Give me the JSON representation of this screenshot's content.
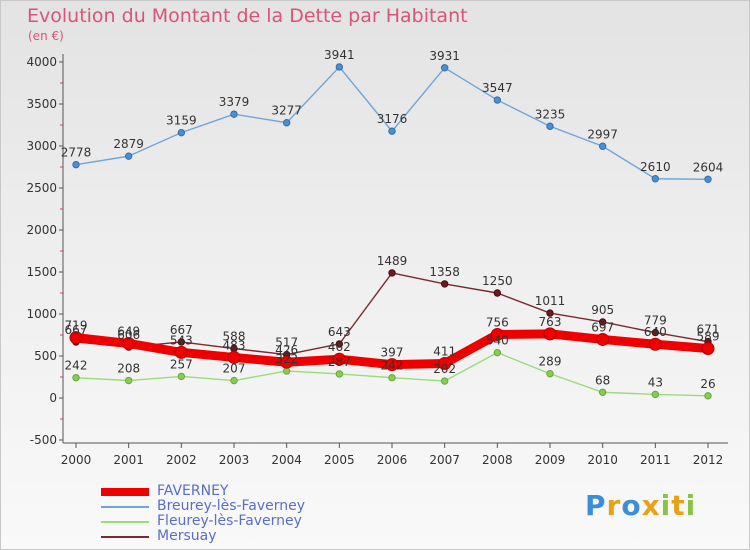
{
  "chart_data": {
    "type": "line",
    "title": "Evolution du Montant de la Dette par Habitant",
    "subtitle": "(en €)",
    "x": [
      "2000",
      "2001",
      "2002",
      "2003",
      "2004",
      "2005",
      "2006",
      "2007",
      "2008",
      "2009",
      "2010",
      "2011",
      "2012"
    ],
    "ylim": [
      -500,
      4000
    ],
    "yticks": [
      "-500",
      "0",
      "500",
      "1000",
      "1500",
      "2000",
      "2500",
      "3000",
      "3500",
      "4000"
    ],
    "grid": false,
    "legend_position": "bottom-left",
    "series": [
      {
        "name": "FAVERNEY",
        "color": "#ee0000",
        "values": [
          719,
          649,
          543,
          483,
          426,
          462,
          397,
          411,
          756,
          763,
          697,
          640,
          589
        ]
      },
      {
        "name": "Breurey-lès-Faverney",
        "color": "#6fa5d8",
        "values": [
          2778,
          2879,
          3159,
          3379,
          3277,
          3941,
          3176,
          3931,
          3547,
          3235,
          2997,
          2610,
          2604
        ]
      },
      {
        "name": "Fleurey-lès-Faverney",
        "color": "#99dd77",
        "values": [
          242,
          208,
          257,
          207,
          322,
          287,
          242,
          202,
          540,
          289,
          68,
          43,
          26
        ]
      },
      {
        "name": "Mersuay",
        "color": "#7a2a30",
        "values": [
          667,
          606,
          667,
          588,
          517,
          643,
          1489,
          1358,
          1250,
          1011,
          905,
          779,
          671
        ]
      }
    ]
  },
  "logo": {
    "text": "Proxiti",
    "letters": [
      {
        "ch": "P",
        "color": "#3d8ed8"
      },
      {
        "ch": "r",
        "color": "#e8a21a"
      },
      {
        "ch": "o",
        "color": "#3d8ed8"
      },
      {
        "ch": "x",
        "color": "#e8a21a"
      },
      {
        "ch": "i",
        "color": "#8bc34a"
      },
      {
        "ch": "t",
        "color": "#e8a21a"
      },
      {
        "ch": "i",
        "color": "#8bc34a"
      }
    ]
  }
}
